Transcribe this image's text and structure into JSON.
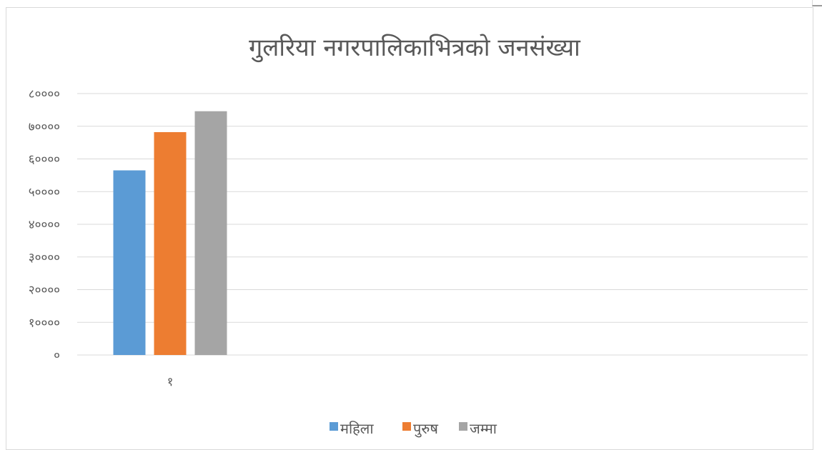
{
  "chart_data": {
    "type": "bar",
    "title": "गुलरिया नगरपालिकाभित्रको जनसंख्या",
    "categories": [
      "१"
    ],
    "series": [
      {
        "name": "महिला",
        "values": [
          56500
        ],
        "color": "#5b9bd5"
      },
      {
        "name": "पुरुष",
        "values": [
          68200
        ],
        "color": "#ed7d31"
      },
      {
        "name": "जम्मा",
        "values": [
          74600
        ],
        "color": "#a5a5a5"
      }
    ],
    "ylim": [
      0,
      80000
    ],
    "yticks": [
      "०",
      "१००००",
      "२००००",
      "३००००",
      "४००००",
      "५००००",
      "६००००",
      "७००००",
      "८००००"
    ],
    "grid": true,
    "legend_position": "bottom"
  }
}
